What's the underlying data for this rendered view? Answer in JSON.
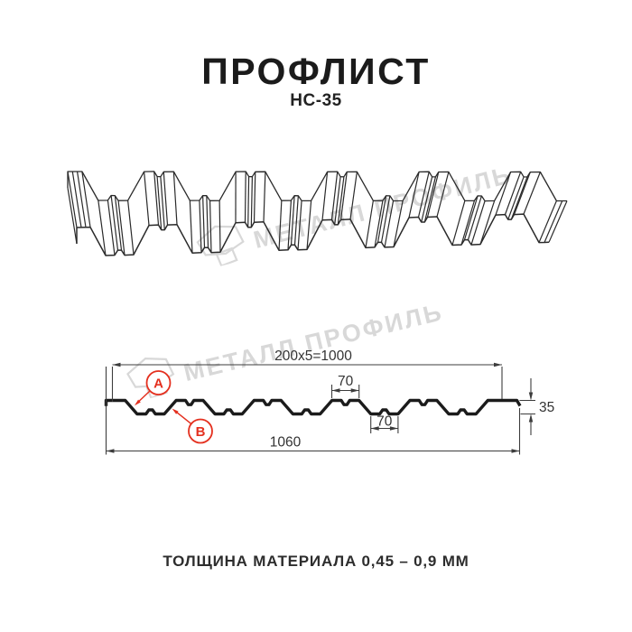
{
  "header": {
    "title": "ПРОФЛИСТ",
    "subtitle": "НС-35"
  },
  "watermark": {
    "brand": "МЕТАЛЛ ПРОФИЛЬ"
  },
  "drawing": {
    "dims": {
      "working_width": "200x5=1000",
      "crest_width": "70",
      "valley_width": "70",
      "height": "35",
      "total_width": "1060"
    },
    "labels": {
      "a": "A",
      "b": "B"
    }
  },
  "footer": {
    "thickness_note": "ТОЛЩИНА МАТЕРИАЛА 0,45 – 0,9 ММ"
  },
  "colors": {
    "line": "#1b1b1b",
    "line_3d": "#2a2a2a",
    "dim": "#3c3c3c",
    "accent_red": "#e4301f",
    "watermark": "#d8d8d8"
  }
}
